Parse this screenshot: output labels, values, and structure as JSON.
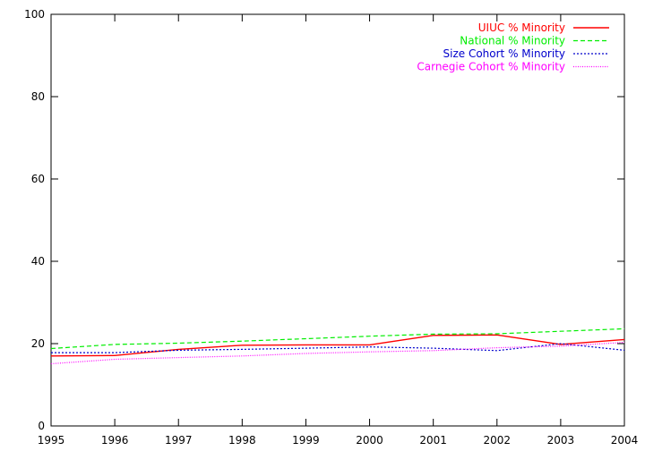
{
  "chart_data": {
    "type": "line",
    "x": [
      1995,
      1996,
      1997,
      1998,
      1999,
      2000,
      2001,
      2002,
      2003,
      2004
    ],
    "xlim": [
      1995,
      2004
    ],
    "ylim": [
      0,
      100
    ],
    "x_ticks": [
      "1995",
      "1996",
      "1997",
      "1998",
      "1999",
      "2000",
      "2001",
      "2002",
      "2003",
      "2004"
    ],
    "y_ticks": [
      "0",
      "20",
      "40",
      "60",
      "80",
      "100"
    ],
    "grid": false,
    "legend_position": "top-right",
    "series": [
      {
        "name": "UIUC % Minority",
        "color": "#ff0000",
        "dash": "solid",
        "values": [
          17.0,
          17.1,
          18.6,
          19.6,
          19.7,
          19.7,
          22.0,
          22.1,
          19.8,
          21.0
        ]
      },
      {
        "name": "National % Minority",
        "color": "#00ee00",
        "dash": "dashed",
        "values": [
          18.8,
          19.8,
          20.1,
          20.6,
          21.2,
          21.8,
          22.3,
          22.4,
          23.0,
          23.6
        ]
      },
      {
        "name": "Size Cohort % Minority",
        "color": "#0000cc",
        "dash": "dotted",
        "values": [
          17.8,
          17.8,
          18.4,
          18.6,
          18.9,
          19.2,
          18.9,
          18.3,
          20.0,
          18.4
        ]
      },
      {
        "name": "Carnegie Cohort % Minority",
        "color": "#ff00ff",
        "dash": "fine-dotted",
        "values": [
          15.1,
          16.2,
          16.6,
          17.0,
          17.6,
          18.0,
          18.3,
          19.0,
          19.4,
          20.3
        ]
      }
    ]
  }
}
